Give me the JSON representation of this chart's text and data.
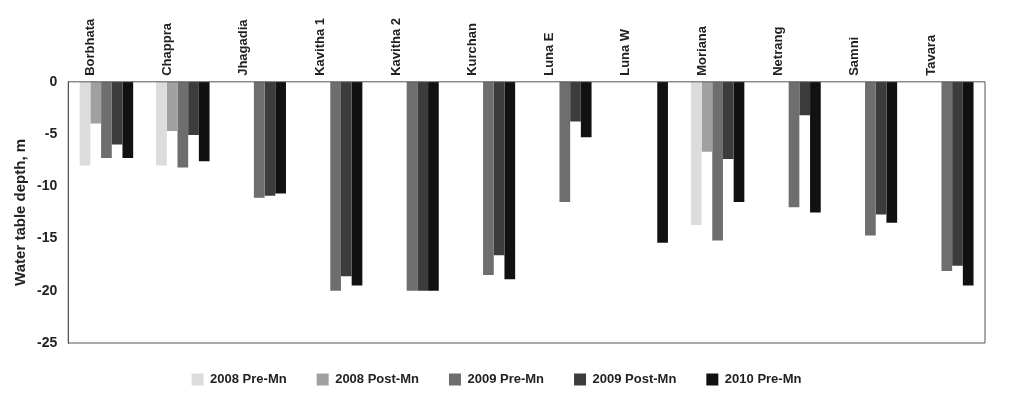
{
  "chart_data": {
    "type": "bar",
    "ylabel": "Water table depth, m",
    "categories": [
      "Borbhata",
      "Chappra",
      "Jhagadia",
      "Kavitha 1",
      "Kavitha 2",
      "Kurchan",
      "Luna E",
      "Luna W",
      "Moriana",
      "Netrang",
      "Samni",
      "Tavara"
    ],
    "series": [
      {
        "name": "2008 Pre-Mn",
        "color": "#dcdcdc",
        "values": [
          -8,
          -8,
          null,
          null,
          null,
          null,
          null,
          null,
          -13.7,
          null,
          null,
          null
        ]
      },
      {
        "name": "2008 Post-Mn",
        "color": "#a0a0a0",
        "values": [
          -4,
          -4.7,
          null,
          null,
          null,
          null,
          null,
          null,
          -6.7,
          null,
          null,
          null
        ]
      },
      {
        "name": "2009 Pre-Mn",
        "color": "#6e6e6e",
        "values": [
          -7.3,
          -8.2,
          -11.1,
          -20,
          -20,
          -18.5,
          -11.5,
          null,
          -15.2,
          -12,
          -14.7,
          -18.1
        ]
      },
      {
        "name": "2009 Post-Mn",
        "color": "#3c3c3c",
        "values": [
          -6,
          -5.1,
          -10.9,
          -18.6,
          -20,
          -16.6,
          -3.8,
          null,
          -7.4,
          -3.2,
          -12.7,
          -17.6
        ]
      },
      {
        "name": "2010 Pre-Mn",
        "color": "#111111",
        "values": [
          -7.3,
          -7.6,
          -10.7,
          -19.5,
          -20,
          -18.9,
          -5.3,
          -15.4,
          -11.5,
          -12.5,
          -13.5,
          -19.5
        ]
      }
    ],
    "ylim": [
      -25,
      0
    ],
    "yticks": [
      -25,
      -20,
      -15,
      -10,
      -5,
      0
    ],
    "grid": false,
    "legend": "bottom"
  }
}
